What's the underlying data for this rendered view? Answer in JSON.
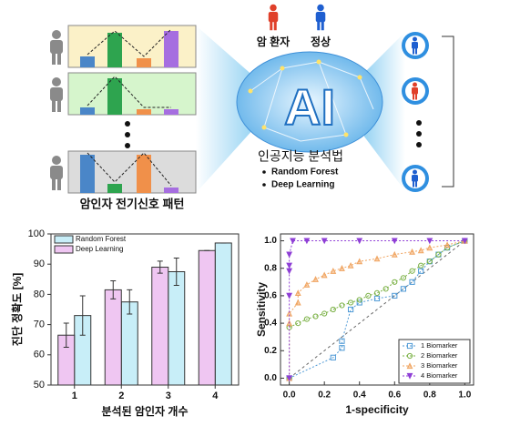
{
  "diagram": {
    "patient_label": "암 환자",
    "normal_label": "정상",
    "ai_label": "AI",
    "method_title": "인공지능 분석법",
    "methods": [
      "Random Forest",
      "Deep Learning"
    ],
    "pattern_label": "암인자 전기신호 패턴"
  },
  "chart_data": [
    {
      "type": "bar",
      "ylabel": "진단 정확도 [%]",
      "xlabel": "분석된 암인자 개수",
      "categories": [
        "1",
        "2",
        "3",
        "4"
      ],
      "series": [
        {
          "name": "Random Forest",
          "color": "#c8eef8",
          "values": [
            73,
            77.5,
            87.5,
            97
          ],
          "errors": [
            6.5,
            4,
            4.5,
            0
          ]
        },
        {
          "name": "Deep Learning",
          "color": "#efc6f2",
          "values": [
            66.5,
            81.5,
            89,
            94.5
          ],
          "errors": [
            4,
            3,
            2,
            0
          ]
        }
      ],
      "ylim": [
        50,
        100
      ],
      "yticks": [
        50,
        60,
        70,
        80,
        90,
        100
      ],
      "legend": "upper left"
    },
    {
      "type": "scatter",
      "xlabel": "1-specificity",
      "ylabel": "Sensitivity",
      "xlim": [
        -0.05,
        1.05
      ],
      "ylim": [
        -0.05,
        1.05
      ],
      "xticks": [
        {
          "value": 0,
          "label": "0.0"
        },
        {
          "value": 0.2,
          "label": "0.2"
        },
        {
          "value": 0.4,
          "label": "0.4"
        },
        {
          "value": 0.6,
          "label": "0.6"
        },
        {
          "value": 0.8,
          "label": "0.8"
        },
        {
          "value": 1,
          "label": "1.0"
        }
      ],
      "yticks": [
        {
          "value": 0,
          "label": "0.0"
        },
        {
          "value": 0.2,
          "label": "0.2"
        },
        {
          "value": 0.4,
          "label": "0.4"
        },
        {
          "value": 0.6,
          "label": "0.6"
        },
        {
          "value": 0.8,
          "label": "0.8"
        },
        {
          "value": 1,
          "label": "1.0"
        }
      ],
      "series": [
        {
          "name": "1 Biomarker",
          "color": "#4f9ad6",
          "marker": "square",
          "x": [
            0,
            0.25,
            0.3,
            0.3,
            0.35,
            0.4,
            0.5,
            0.6,
            0.65,
            0.7,
            0.75,
            0.8,
            0.85,
            0.9,
            1
          ],
          "values": [
            0,
            0.15,
            0.22,
            0.27,
            0.5,
            0.55,
            0.58,
            0.6,
            0.65,
            0.7,
            0.78,
            0.85,
            0.9,
            0.95,
            1
          ]
        },
        {
          "name": "2 Biomarker",
          "color": "#79b043",
          "marker": "circle",
          "x": [
            0,
            0,
            0.05,
            0.1,
            0.15,
            0.2,
            0.25,
            0.3,
            0.35,
            0.4,
            0.45,
            0.5,
            0.55,
            0.6,
            0.65,
            0.7,
            0.75,
            0.8,
            0.85,
            0.9,
            1
          ],
          "values": [
            0,
            0.37,
            0.4,
            0.43,
            0.45,
            0.47,
            0.5,
            0.53,
            0.55,
            0.57,
            0.6,
            0.62,
            0.65,
            0.7,
            0.73,
            0.78,
            0.82,
            0.85,
            0.9,
            0.95,
            1
          ]
        },
        {
          "name": "3 Biomarker",
          "color": "#f0a460",
          "marker": "triangle-up",
          "x": [
            0,
            0,
            0,
            0.05,
            0.05,
            0.1,
            0.15,
            0.2,
            0.25,
            0.3,
            0.35,
            0.4,
            0.5,
            0.6,
            0.7,
            0.75,
            0.8,
            0.9,
            1
          ],
          "values": [
            0,
            0.4,
            0.47,
            0.55,
            0.62,
            0.68,
            0.72,
            0.75,
            0.78,
            0.8,
            0.82,
            0.85,
            0.87,
            0.9,
            0.92,
            0.93,
            0.95,
            0.97,
            1
          ]
        },
        {
          "name": "4 Biomarker",
          "color": "#8f3fd6",
          "marker": "triangle-down",
          "x": [
            0,
            0,
            0,
            0,
            0,
            0.02,
            0.1,
            0.2,
            0.4,
            0.6,
            0.8,
            1
          ],
          "values": [
            0,
            0.6,
            0.78,
            0.82,
            0.9,
            1,
            1,
            1,
            1,
            1,
            1,
            1
          ]
        }
      ],
      "legend": "lower right"
    }
  ]
}
